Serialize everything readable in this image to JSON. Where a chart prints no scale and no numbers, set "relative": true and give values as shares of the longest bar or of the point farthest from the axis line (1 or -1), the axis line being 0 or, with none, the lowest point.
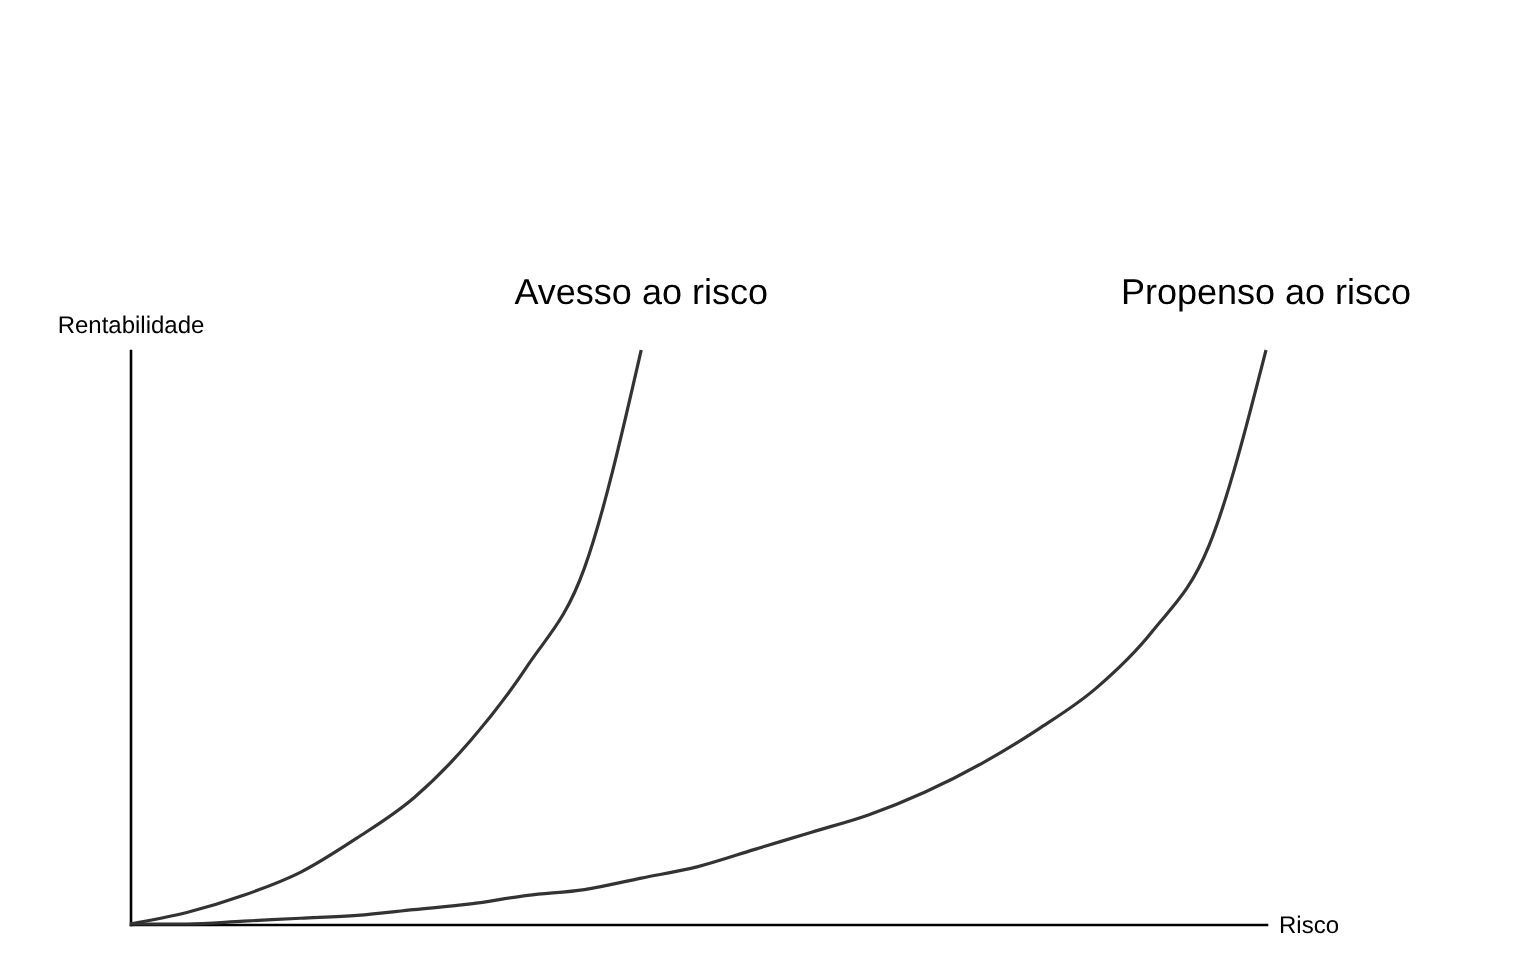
{
  "chart_data": {
    "type": "line",
    "relative": true,
    "xlabel": "Risco",
    "ylabel": "Rentabilidade",
    "categories": [
      null,
      null,
      null,
      null,
      null,
      null,
      null,
      null,
      null,
      null,
      null,
      null,
      null,
      null,
      null,
      null,
      null,
      null,
      null,
      null,
      null
    ],
    "series": [
      {
        "name": "Avesso ao risco",
        "color": "#333333",
        "values": [
          0,
          0.02,
          0.05,
          0.09,
          0.15,
          0.22,
          0.32,
          0.45,
          0.62,
          1,
          null,
          null,
          null,
          null,
          null,
          null,
          null,
          null,
          null,
          null,
          null
        ]
      },
      {
        "name": "Propenso ao risco",
        "color": "#333333",
        "values": [
          0,
          0,
          0.005,
          0.01,
          0.015,
          0.025,
          0.035,
          0.05,
          0.06,
          0.08,
          0.1,
          0.13,
          0.16,
          0.19,
          0.23,
          0.28,
          0.34,
          0.41,
          0.51,
          0.66,
          1
        ]
      }
    ],
    "legend": false,
    "grid": false,
    "marker": "none",
    "line_style": "solid"
  }
}
